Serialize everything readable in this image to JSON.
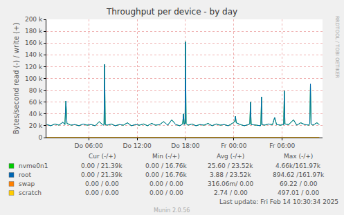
{
  "chart_data": {
    "type": "line",
    "title": "Throughput per device - by day",
    "ylabel": "Bytes/second read (-) / write (+)",
    "x": [
      0.8,
      1.3,
      1.8,
      2.3,
      2.8,
      3.05,
      3.17,
      3.3,
      3.8,
      4.3,
      4.8,
      5.3,
      5.8,
      6.3,
      6.8,
      7.3,
      7.8,
      7.9,
      7.97,
      8.05,
      8.3,
      8.8,
      9.3,
      9.8,
      10.3,
      10.8,
      11.3,
      11.8,
      12.3,
      12.8,
      13.3,
      13.8,
      14.3,
      14.8,
      15.3,
      15.8,
      16.3,
      16.8,
      17.3,
      17.65,
      17.75,
      17.85,
      17.95,
      18.0,
      18.08,
      18.3,
      18.8,
      19.3,
      19.8,
      20.3,
      20.8,
      21.3,
      21.8,
      22.3,
      22.8,
      23.3,
      23.8,
      24.1,
      24.2,
      24.3,
      24.8,
      25.3,
      25.8,
      25.98,
      26.06,
      26.15,
      26.8,
      27.3,
      27.35,
      27.43,
      27.5,
      27.8,
      28.3,
      28.8,
      29.06,
      29.3,
      29.8,
      30.18,
      30.26,
      30.34,
      30.8,
      31.4,
      31.8,
      32.3,
      32.8,
      33.3,
      33.42,
      33.5,
      33.58,
      33.8,
      34.3,
      34.6
    ],
    "series": [
      {
        "name": "nvme0n1",
        "color": "#00CC00",
        "values": [
          22000,
          20000,
          23000,
          21000,
          26000,
          22000,
          62000,
          24000,
          21000,
          22000,
          20000,
          23000,
          21000,
          22000,
          20000,
          27000,
          21000,
          22000,
          124000,
          22000,
          21000,
          23000,
          20000,
          22000,
          21000,
          25000,
          20000,
          22000,
          21000,
          23000,
          20000,
          24000,
          21000,
          22000,
          27000,
          21000,
          30000,
          22000,
          20000,
          23000,
          40000,
          22000,
          25000,
          162000,
          24000,
          21000,
          23000,
          20000,
          22000,
          21000,
          24000,
          20000,
          23000,
          21000,
          22000,
          20000,
          24000,
          27000,
          36000,
          25000,
          22000,
          20000,
          22000,
          23000,
          60000,
          22000,
          21000,
          20000,
          22000,
          69000,
          22000,
          21000,
          23000,
          22000,
          34000,
          22000,
          21000,
          22000,
          79000,
          23000,
          22000,
          30000,
          21000,
          25000,
          22000,
          21000,
          24000,
          91000,
          23000,
          21000,
          25000,
          22000
        ]
      },
      {
        "name": "root",
        "color": "#0066B3",
        "values": [
          22000,
          20000,
          23000,
          21000,
          26000,
          22000,
          62000,
          24000,
          21000,
          22000,
          20000,
          23000,
          21000,
          22000,
          20000,
          27000,
          21000,
          22000,
          124000,
          22000,
          21000,
          23000,
          20000,
          22000,
          21000,
          25000,
          20000,
          22000,
          21000,
          23000,
          20000,
          24000,
          21000,
          22000,
          27000,
          21000,
          30000,
          22000,
          20000,
          23000,
          40000,
          22000,
          25000,
          162000,
          24000,
          21000,
          23000,
          20000,
          22000,
          21000,
          24000,
          20000,
          23000,
          21000,
          22000,
          20000,
          24000,
          27000,
          36000,
          25000,
          22000,
          20000,
          22000,
          23000,
          60000,
          22000,
          21000,
          20000,
          22000,
          69000,
          22000,
          21000,
          23000,
          22000,
          34000,
          22000,
          21000,
          22000,
          79000,
          23000,
          22000,
          30000,
          21000,
          25000,
          22000,
          21000,
          24000,
          91000,
          23000,
          21000,
          25000,
          22000
        ]
      },
      {
        "name": "swap",
        "color": "#FF8000",
        "values": [
          0,
          0,
          0,
          0,
          0,
          0,
          0,
          0,
          0,
          0,
          0,
          0,
          0,
          0,
          0,
          0,
          0,
          0,
          0,
          0,
          0,
          0,
          0,
          0,
          0,
          0,
          0,
          0,
          0,
          0,
          0,
          0,
          0,
          0,
          0,
          0,
          0,
          0,
          0,
          0,
          0,
          0,
          0,
          0,
          0,
          0,
          0,
          0,
          0,
          0,
          0,
          0,
          0,
          0,
          0,
          0,
          0,
          0,
          0,
          0,
          0,
          0,
          0,
          0,
          0,
          0,
          0,
          0,
          0,
          0,
          0,
          0,
          0,
          0,
          0,
          0,
          0,
          0,
          0,
          0,
          0,
          0,
          0,
          0,
          0,
          0,
          0,
          0,
          0,
          0,
          0,
          0
        ]
      },
      {
        "name": "scratch",
        "color": "#FFCC00",
        "values": [
          0,
          0,
          0,
          0,
          0,
          0,
          0,
          0,
          0,
          0,
          0,
          0,
          0,
          0,
          0,
          0,
          0,
          0,
          0,
          0,
          0,
          0,
          0,
          0,
          0,
          0,
          0,
          0,
          0,
          0,
          0,
          0,
          0,
          0,
          0,
          0,
          0,
          0,
          0,
          0,
          0,
          0,
          0,
          0,
          0,
          0,
          0,
          0,
          0,
          0,
          0,
          0,
          0,
          0,
          0,
          0,
          0,
          0,
          0,
          0,
          0,
          0,
          0,
          0,
          0,
          0,
          0,
          0,
          0,
          0,
          0,
          0,
          0,
          0,
          0,
          0,
          0,
          0,
          0,
          0,
          0,
          0,
          0,
          0,
          0,
          0,
          0,
          0,
          0,
          0,
          0,
          0
        ]
      }
    ],
    "xlim": [
      0.75,
      35.0
    ],
    "xticks": [
      {
        "value": 6,
        "label": "Do 06:00"
      },
      {
        "value": 12,
        "label": "Do 12:00"
      },
      {
        "value": 18,
        "label": "Do 18:00"
      },
      {
        "value": 24,
        "label": "Fr 00:00"
      },
      {
        "value": 30,
        "label": "Fr 06:00"
      }
    ],
    "ylim": [
      0,
      200000
    ],
    "yticks": [
      0,
      {
        "value": 20000,
        "label": "20 k"
      },
      {
        "value": 40000,
        "label": "40 k"
      },
      {
        "value": 60000,
        "label": "60 k"
      },
      {
        "value": 80000,
        "label": "80 k"
      },
      {
        "value": 100000,
        "label": "100 k"
      },
      {
        "value": 120000,
        "label": "120 k"
      },
      {
        "value": 140000,
        "label": "140 k"
      },
      {
        "value": 160000,
        "label": "160 k"
      },
      {
        "value": 180000,
        "label": "180 k"
      },
      {
        "value": 200000,
        "label": "200 k"
      }
    ],
    "grid": true,
    "stats": {
      "columns": [
        "Cur (-/+)",
        "Min (-/+)",
        "Avg (-/+)",
        "Max (-/+)"
      ],
      "rows": [
        [
          "0.00 / 21.39k",
          "0.00 / 16.76k",
          "25.60 / 23.52k",
          "4.66k/161.97k"
        ],
        [
          "0.00 / 21.39k",
          "0.00 / 16.76k",
          "3.88 / 23.52k",
          "894.62 /161.97k"
        ],
        [
          "0.00 / 0.00",
          "0.00 / 0.00",
          "316.06m/ 0.00",
          "69.22 / 0.00"
        ],
        [
          "0.00 / 0.00",
          "0.00 / 0.00",
          "2.74 / 0.00",
          "497.01 / 0.00"
        ]
      ]
    },
    "annotations": [
      "Last update: Fri Feb 14 10:30:34 2025",
      "Munin 2.0.56",
      "RRDTOOL / TOBI OETIKER"
    ]
  }
}
